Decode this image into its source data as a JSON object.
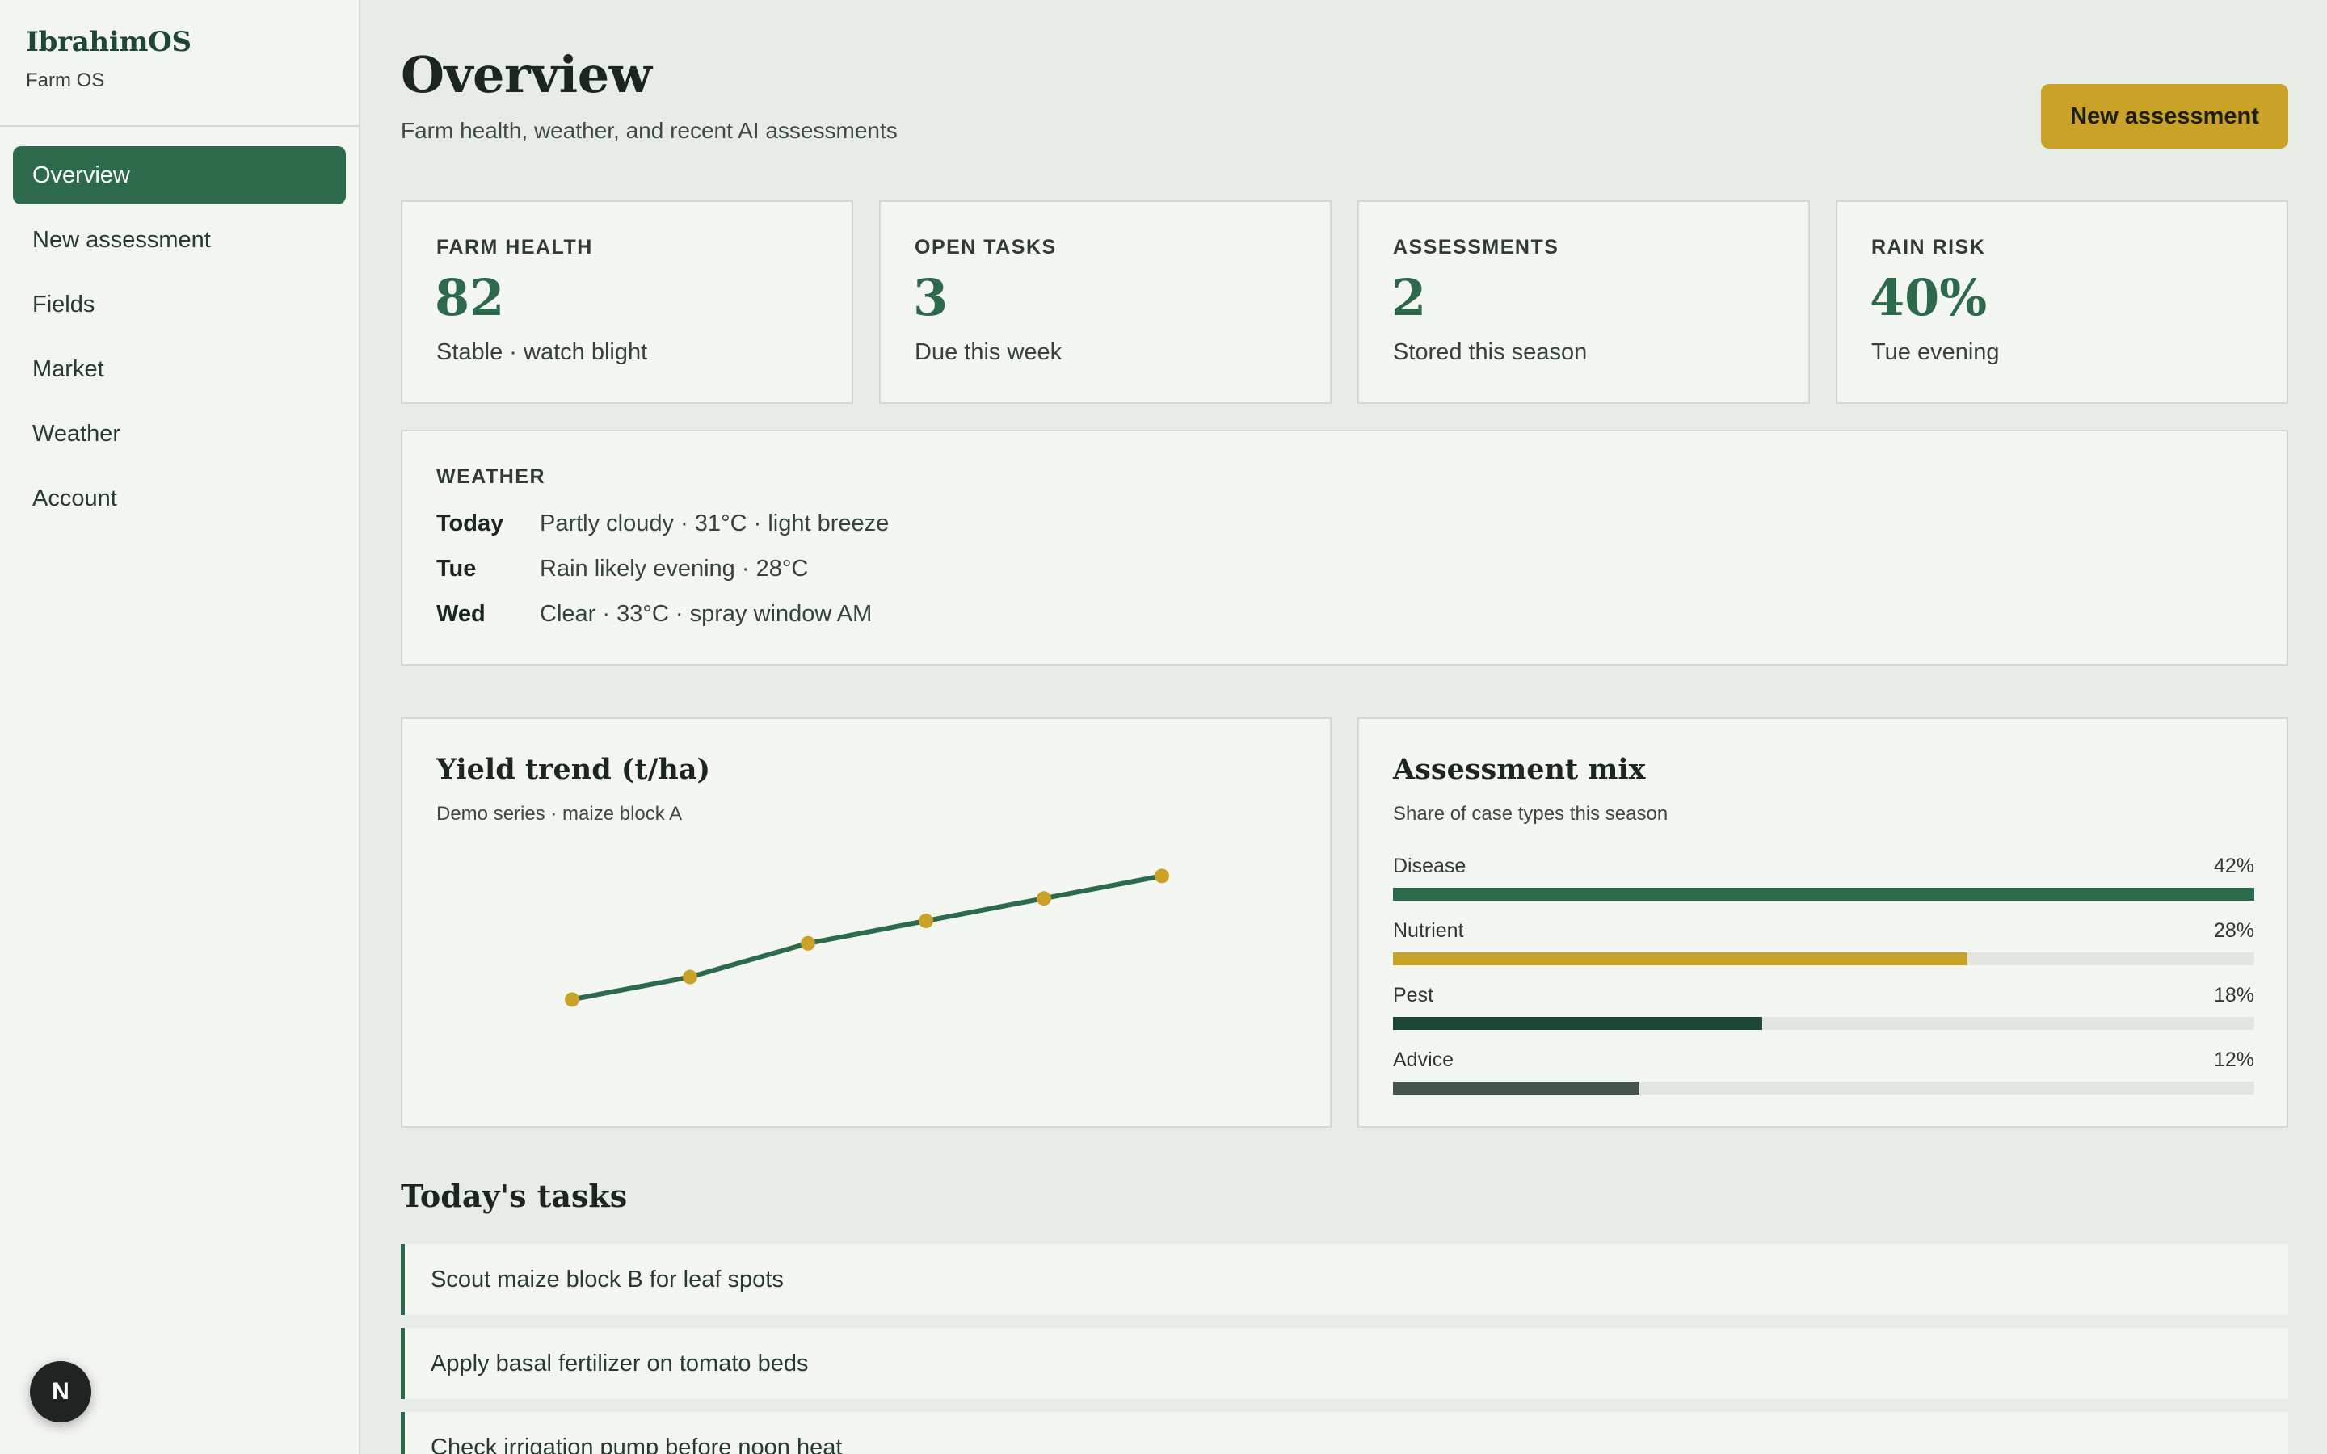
{
  "brand": {
    "name": "IbrahimOS",
    "subtitle": "Farm OS"
  },
  "nav": {
    "items": [
      {
        "label": "Overview",
        "active": true
      },
      {
        "label": "New assessment",
        "active": false
      },
      {
        "label": "Fields",
        "active": false
      },
      {
        "label": "Market",
        "active": false
      },
      {
        "label": "Weather",
        "active": false
      },
      {
        "label": "Account",
        "active": false
      }
    ]
  },
  "fab": {
    "label": "N"
  },
  "header": {
    "title": "Overview",
    "subtitle": "Farm health, weather, and recent AI assessments",
    "action_label": "New assessment"
  },
  "stats": [
    {
      "label": "FARM HEALTH",
      "value": "82",
      "note": "Stable · watch blight"
    },
    {
      "label": "OPEN TASKS",
      "value": "3",
      "note": "Due this week"
    },
    {
      "label": "ASSESSMENTS",
      "value": "2",
      "note": "Stored this season"
    },
    {
      "label": "RAIN RISK",
      "value": "40%",
      "note": "Tue evening"
    }
  ],
  "weather": {
    "label": "WEATHER",
    "rows": [
      {
        "day": "Today",
        "desc": "Partly cloudy · 31°C · light breeze"
      },
      {
        "day": "Tue",
        "desc": "Rain likely evening · 28°C"
      },
      {
        "day": "Wed",
        "desc": "Clear · 33°C · spray window AM"
      }
    ]
  },
  "yield_panel": {
    "title": "Yield trend (t/ha)",
    "subtitle": "Demo series · maize block A"
  },
  "mix_panel": {
    "title": "Assessment mix",
    "subtitle": "Share of case types this season",
    "rows": [
      {
        "label": "Disease",
        "pct": "42%",
        "fraction": 1.0,
        "color": "#2d6a4c"
      },
      {
        "label": "Nutrient",
        "pct": "28%",
        "fraction": 0.667,
        "color": "#c9a227"
      },
      {
        "label": "Pest",
        "pct": "18%",
        "fraction": 0.429,
        "color": "#1d4734"
      },
      {
        "label": "Advice",
        "pct": "12%",
        "fraction": 0.286,
        "color": "#44554b"
      }
    ]
  },
  "tasks": {
    "title": "Today's tasks",
    "items": [
      "Scout maize block B for leaf spots",
      "Apply basal fertilizer on tomato beds",
      "Check irrigation pump before noon heat"
    ]
  },
  "chart_data": {
    "type": "line",
    "title": "Yield trend (t/ha)",
    "subtitle": "Demo series · maize block A",
    "x": [
      1,
      2,
      3,
      4,
      5,
      6
    ],
    "series": [
      {
        "values": [
          2.0,
          2.6,
          3.5,
          4.1,
          4.7,
          5.3
        ]
      }
    ],
    "ylim": [
      0,
      6
    ],
    "grid": false,
    "line_color": "#2d6a4c",
    "point_color": "#c9a227"
  }
}
